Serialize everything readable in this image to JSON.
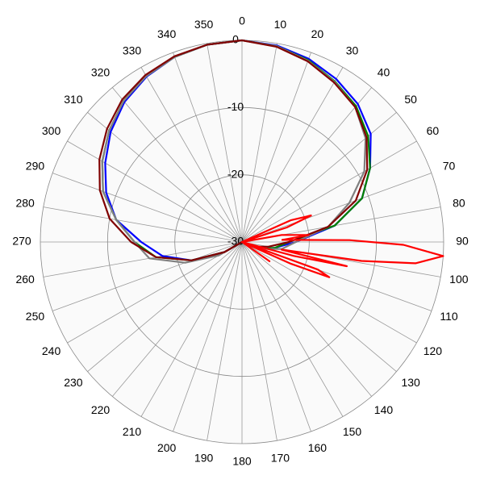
{
  "chart_data": {
    "type": "polar",
    "rlim": [
      -30,
      0
    ],
    "rticks": [
      -30,
      -20,
      -10,
      0
    ],
    "thetaticks": [
      0,
      10,
      20,
      30,
      40,
      50,
      60,
      70,
      80,
      90,
      100,
      110,
      120,
      130,
      140,
      150,
      160,
      170,
      180,
      190,
      200,
      210,
      220,
      230,
      240,
      250,
      260,
      270,
      280,
      290,
      300,
      310,
      320,
      330,
      340,
      350
    ],
    "grid": true,
    "series": [
      {
        "color": "#0000ff",
        "theta": [
          0,
          10,
          20,
          30,
          40,
          50,
          60,
          70,
          80,
          90,
          100,
          110,
          120,
          130,
          140,
          150,
          160,
          170,
          180,
          190,
          200,
          210,
          220,
          230,
          240,
          250,
          260,
          270,
          280,
          290,
          300,
          310,
          320,
          330,
          340,
          350,
          360
        ],
        "values": [
          0,
          -0.3,
          -1,
          -2,
          -3.2,
          -5,
          -8,
          -11,
          -16,
          -22,
          -25,
          -27,
          -29,
          -30,
          -30,
          -30,
          -30,
          -30,
          -30,
          -30,
          -30,
          -30,
          -30,
          -30,
          -27,
          -22,
          -18,
          -15,
          -11,
          -8.5,
          -6.5,
          -4.5,
          -2.8,
          -1.6,
          -0.7,
          -0.2,
          0
        ]
      },
      {
        "color": "#008000",
        "theta": [
          0,
          10,
          20,
          30,
          40,
          50,
          60,
          70,
          80,
          90,
          100,
          110,
          120,
          130,
          140,
          150,
          160,
          170,
          180,
          190,
          200,
          210,
          220,
          230,
          240,
          250,
          260,
          270,
          280,
          290,
          300,
          310,
          320,
          330,
          340,
          350,
          360
        ],
        "values": [
          0,
          -0.4,
          -1.2,
          -2.4,
          -3.6,
          -5.5,
          -8,
          -11,
          -16,
          -23,
          -25,
          -27,
          -29,
          -30,
          -30,
          -30,
          -30,
          -30,
          -30,
          -30,
          -30,
          -30,
          -30,
          -30,
          -27,
          -22,
          -17,
          -14,
          -11,
          -8,
          -6,
          -4.2,
          -2.6,
          -1.5,
          -0.7,
          -0.2,
          0
        ]
      },
      {
        "color": "#808080",
        "theta": [
          0,
          10,
          20,
          30,
          40,
          50,
          60,
          70,
          80,
          90,
          100,
          110,
          120,
          130,
          140,
          150,
          160,
          170,
          180,
          190,
          200,
          210,
          220,
          230,
          240,
          250,
          260,
          270,
          280,
          290,
          300,
          310,
          320,
          330,
          340,
          350,
          360
        ],
        "values": [
          0,
          -0.4,
          -1.3,
          -2.5,
          -3.8,
          -6,
          -9,
          -13,
          -17,
          -22,
          -24,
          -27,
          -29,
          -30,
          -30,
          -30,
          -30,
          -30,
          -30,
          -30,
          -30,
          -30,
          -30,
          -30,
          -26,
          -21,
          -16,
          -14,
          -11,
          -8,
          -6,
          -4.2,
          -2.6,
          -1.5,
          -0.7,
          -0.2,
          0
        ]
      },
      {
        "color": "#800000",
        "theta": [
          0,
          10,
          20,
          30,
          40,
          50,
          60,
          70,
          80,
          90,
          100,
          110,
          120,
          130,
          140,
          150,
          160,
          170,
          180,
          190,
          200,
          210,
          220,
          230,
          240,
          250,
          260,
          270,
          280,
          290,
          300,
          310,
          320,
          330,
          340,
          350,
          360
        ],
        "values": [
          0,
          -0.5,
          -1.4,
          -2.6,
          -3.8,
          -5.8,
          -8.5,
          -12,
          -17,
          -23,
          -26,
          -28,
          -29,
          -30,
          -30,
          -30,
          -30,
          -30,
          -30,
          -30,
          -30,
          -30,
          -30,
          -30,
          -27,
          -22,
          -17,
          -13.5,
          -10,
          -7.5,
          -5.5,
          -3.8,
          -2.3,
          -1.3,
          -0.6,
          -0.2,
          0
        ]
      },
      {
        "color": "#ff0000",
        "theta": [
          0,
          60,
          66,
          69,
          72,
          76,
          80,
          84,
          87,
          89,
          91,
          94,
          97,
          99,
          101,
          103,
          105,
          108,
          110,
          112,
          114,
          117,
          125,
          130,
          360
        ],
        "values": [
          -30,
          -30,
          -22,
          -19,
          -23,
          -30,
          -24,
          -20,
          -24,
          -14,
          -6,
          0,
          -4,
          -12,
          -24,
          -14,
          -22,
          -30,
          -18,
          -16,
          -22,
          -30,
          -25,
          -30,
          -30
        ]
      }
    ]
  }
}
